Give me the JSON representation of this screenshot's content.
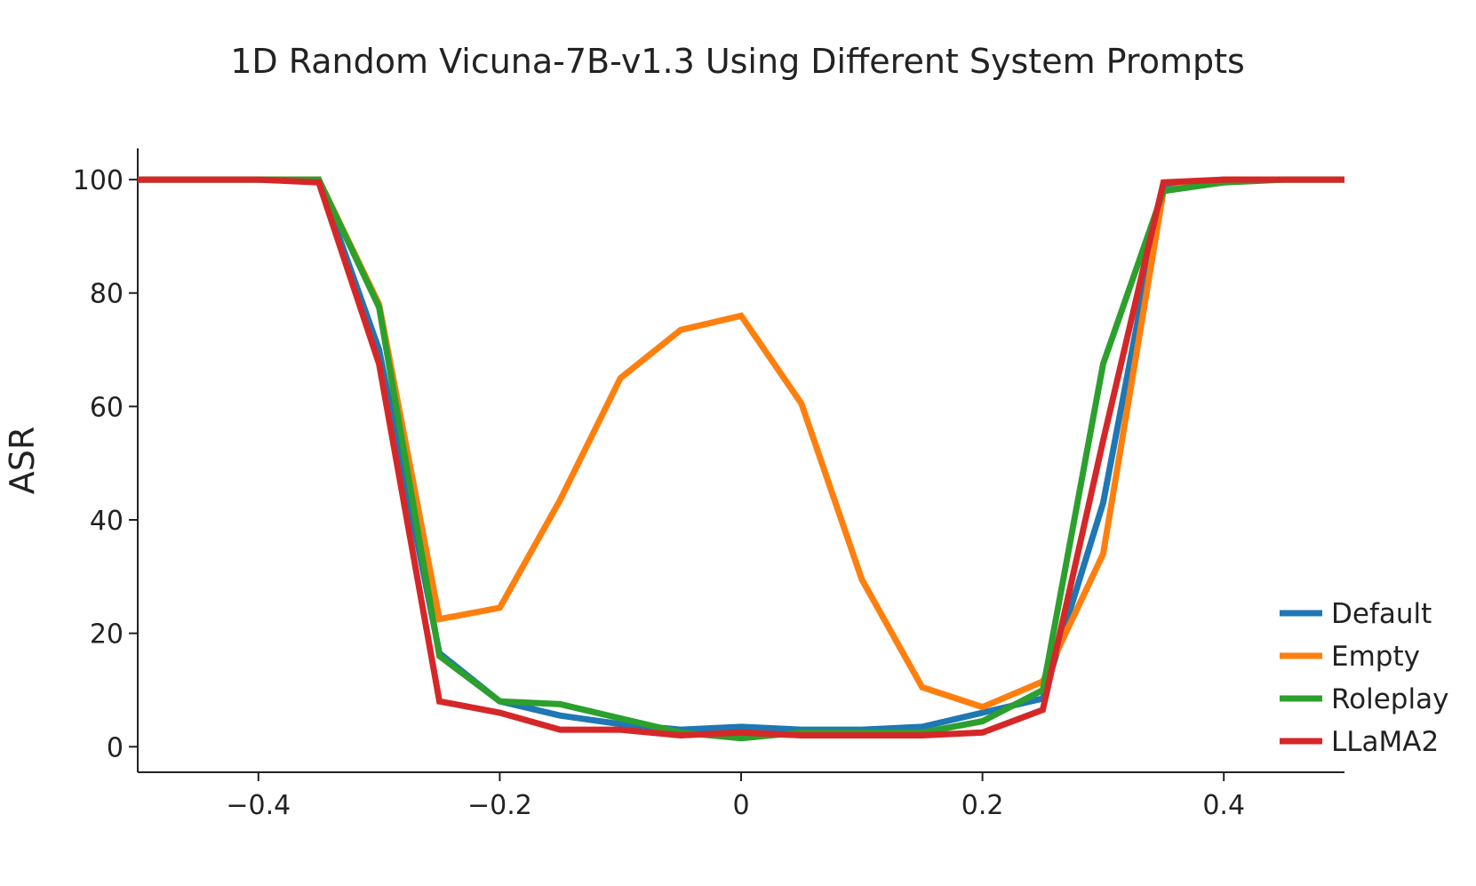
{
  "chart_data": {
    "type": "line",
    "title": "1D Random Vicuna-7B-v1.3 Using Different System Prompts",
    "xlabel": "",
    "ylabel": "ASR",
    "xlim": [
      -0.5,
      0.5
    ],
    "ylim": [
      -4.5,
      105.5
    ],
    "xticks": [
      -0.4,
      -0.2,
      0,
      0.2,
      0.4
    ],
    "xtick_labels": [
      "−0.4",
      "−0.2",
      "0",
      "0.2",
      "0.4"
    ],
    "yticks": [
      0,
      20,
      40,
      60,
      80,
      100
    ],
    "ytick_labels": [
      "0",
      "20",
      "40",
      "60",
      "80",
      "100"
    ],
    "grid": false,
    "legend_position": "lower-right",
    "x": [
      -0.5,
      -0.4,
      -0.35,
      -0.3,
      -0.25,
      -0.2,
      -0.15,
      -0.1,
      -0.05,
      0,
      0.05,
      0.1,
      0.15,
      0.2,
      0.25,
      0.3,
      0.35,
      0.4,
      0.45,
      0.5
    ],
    "series": [
      {
        "name": "Default",
        "color": "#1f77b4",
        "values": [
          100,
          100,
          100,
          70,
          16.5,
          8,
          5.5,
          4,
          3,
          3.5,
          3,
          3,
          3.5,
          6,
          8.5,
          43,
          99,
          100,
          100,
          100
        ]
      },
      {
        "name": "Empty",
        "color": "#ff7f0e",
        "values": [
          100,
          100,
          100,
          78,
          22.5,
          24.5,
          43.5,
          65,
          73.5,
          76,
          60.5,
          29.5,
          10.5,
          7,
          11.5,
          34,
          98,
          100,
          100,
          100
        ]
      },
      {
        "name": "Roleplay",
        "color": "#2ca02c",
        "values": [
          100,
          100,
          100,
          77.5,
          16,
          8,
          7.5,
          5,
          2.5,
          1.5,
          2.5,
          2.5,
          2.5,
          4.5,
          10,
          67.5,
          98,
          99.5,
          100,
          100
        ]
      },
      {
        "name": "LLaMA2",
        "color": "#d62728",
        "values": [
          100,
          100,
          99.5,
          67.5,
          8,
          6,
          3,
          3,
          2,
          2.5,
          2,
          2,
          2,
          2.5,
          6.5,
          54,
          99.5,
          100,
          100,
          100
        ]
      }
    ]
  }
}
